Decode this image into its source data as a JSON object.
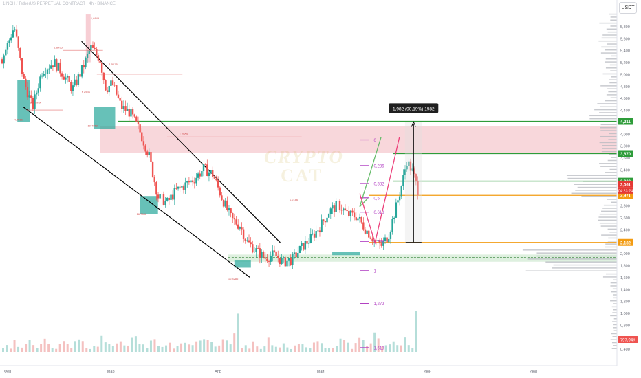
{
  "header": {
    "symbol_line": "1INCH / TetherUS PERPETUAL CONTRACT · 4h · BINANCE",
    "currency_button": "USDT"
  },
  "watermark": {
    "line1": "CRYPTO",
    "line2": "CAT"
  },
  "colors": {
    "background": "#ffffff",
    "candle_up": "#26a69a",
    "candle_down": "#ef5350",
    "zone_red": "#f6c9cf",
    "zone_green": "#c8e6c9",
    "level_green": "#2e9c3a",
    "level_orange": "#f39c12",
    "fib_purple": "#b13fc2",
    "price_red": "#e53935",
    "volume_bar": "#c3c6ce",
    "projection_green": "#66bb6a",
    "projection_red": "#ec407a"
  },
  "chart_data": {
    "type": "candlestick",
    "y_axis": {
      "ticks": [
        "5,800",
        "5,600",
        "5,400",
        "5,200",
        "5,000",
        "4,800",
        "4,600",
        "4,400",
        "4,200",
        "4,000",
        "3,800",
        "3,600",
        "3,400",
        "3,200",
        "3,000",
        "2,800",
        "2,600",
        "2,400",
        "2,200",
        "2,000",
        "1,800",
        "1,600",
        "1,400",
        "1,200",
        "1,000",
        "0,800",
        "0,600",
        "0,400"
      ],
      "tick_values": [
        5.8,
        5.6,
        5.4,
        5.2,
        5.0,
        4.8,
        4.6,
        4.4,
        4.2,
        4.0,
        3.8,
        3.6,
        3.4,
        3.2,
        3.0,
        2.8,
        2.6,
        2.4,
        2.2,
        2.0,
        1.8,
        1.6,
        1.4,
        1.2,
        1.0,
        0.8,
        0.6,
        0.4
      ],
      "range": [
        0.35,
        6.15
      ]
    },
    "x_axis": {
      "ticks": [
        "Фев",
        "Мар",
        "Апр",
        "Май",
        "Июн",
        "Июл"
      ],
      "tick_pos": [
        0.0,
        0.1685,
        0.3444,
        0.5115,
        0.6859,
        0.8592
      ]
    },
    "price_path": [
      [
        0.0,
        5.25
      ],
      [
        0.02,
        5.8
      ],
      [
        0.035,
        4.9
      ],
      [
        0.05,
        4.45
      ],
      [
        0.065,
        5.05
      ],
      [
        0.085,
        5.2
      ],
      [
        0.1,
        5.0
      ],
      [
        0.115,
        4.75
      ],
      [
        0.13,
        5.05
      ],
      [
        0.145,
        5.45
      ],
      [
        0.16,
        5.25
      ],
      [
        0.17,
        4.75
      ],
      [
        0.18,
        4.85
      ],
      [
        0.195,
        4.45
      ],
      [
        0.21,
        4.35
      ],
      [
        0.225,
        4.05
      ],
      [
        0.24,
        3.65
      ],
      [
        0.255,
        2.95
      ],
      [
        0.27,
        2.85
      ],
      [
        0.285,
        3.05
      ],
      [
        0.3,
        3.15
      ],
      [
        0.315,
        3.25
      ],
      [
        0.33,
        3.42
      ],
      [
        0.345,
        3.32
      ],
      [
        0.36,
        2.92
      ],
      [
        0.375,
        2.58
      ],
      [
        0.39,
        2.45
      ],
      [
        0.4,
        2.2
      ],
      [
        0.415,
        2.05
      ],
      [
        0.43,
        1.92
      ],
      [
        0.445,
        1.98
      ],
      [
        0.46,
        1.85
      ],
      [
        0.475,
        1.9
      ],
      [
        0.49,
        2.1
      ],
      [
        0.505,
        2.25
      ],
      [
        0.52,
        2.45
      ],
      [
        0.535,
        2.7
      ],
      [
        0.55,
        2.82
      ],
      [
        0.565,
        2.65
      ],
      [
        0.58,
        2.62
      ],
      [
        0.595,
        2.4
      ],
      [
        0.61,
        2.2
      ],
      [
        0.62,
        2.12
      ],
      [
        0.632,
        2.3
      ],
      [
        0.645,
        2.8
      ],
      [
        0.655,
        3.2
      ],
      [
        0.662,
        3.55
      ],
      [
        0.672,
        3.35
      ],
      [
        0.68,
        3.06
      ]
    ],
    "volume_heights": [
      0.12,
      0.18,
      0.1,
      0.25,
      0.15,
      0.09,
      0.22,
      0.3,
      0.14,
      0.11,
      0.19,
      0.28,
      0.16,
      0.09,
      0.13,
      0.21,
      0.34,
      0.18,
      0.12,
      0.26,
      0.4,
      0.22,
      0.15,
      0.11,
      0.17,
      0.24,
      0.45,
      0.3,
      0.2,
      0.14,
      0.18,
      0.33,
      0.25,
      0.19,
      0.38,
      0.62,
      0.28,
      0.21,
      0.16,
      0.27,
      0.35,
      0.24,
      0.18,
      0.3,
      0.22,
      0.15,
      0.2,
      0.31,
      0.26,
      0.19,
      0.14,
      0.22,
      0.35,
      0.48,
      0.29,
      0.21,
      0.17,
      0.25,
      0.33,
      0.28,
      0.2,
      0.45,
      1.0
    ],
    "price_levels": [
      {
        "label": "4,211",
        "value": 4.211,
        "color": "#2e9c3a"
      },
      {
        "label": "3,670",
        "value": 3.67,
        "color": "#2e9c3a"
      },
      {
        "label": "3,209",
        "value": 3.209,
        "color": "#2e9c3a"
      },
      {
        "label": "3,061",
        "value": 3.061,
        "color": "#e53935"
      },
      {
        "label": "2,971",
        "value": 2.971,
        "color": "#f39c12"
      },
      {
        "label": "2,182",
        "value": 2.182,
        "color": "#f39c12"
      }
    ],
    "countdown": "04:23:24",
    "volume_label": "797,94K",
    "fib_levels": [
      {
        "label": "0",
        "value": 3.9
      },
      {
        "label": "0,236",
        "value": 3.47
      },
      {
        "label": "0,382",
        "value": 3.17
      },
      {
        "label": "0,5",
        "value": 2.93
      },
      {
        "label": "0,618",
        "value": 2.69
      },
      {
        "label": "0,786",
        "value": 2.2
      },
      {
        "label": "1",
        "value": 1.71
      },
      {
        "label": "1,272",
        "value": 1.16
      },
      {
        "label": "1,618",
        "value": 0.42
      }
    ],
    "measure_label": "1,982 (90,19%) 1982",
    "annotations": [
      {
        "text": "1,6849",
        "px": 0.145,
        "value": 5.92
      },
      {
        "text": "1,8495",
        "px": 0.085,
        "value": 5.43
      },
      {
        "text": "1,5175",
        "px": 0.175,
        "value": 5.15
      },
      {
        "text": "1,4995",
        "px": 0.13,
        "value": 4.68
      },
      {
        "text": "4,7566",
        "px": 0.02,
        "value": 4.22
      },
      {
        "text": "183,3226",
        "px": 0.045,
        "value": 4.5
      },
      {
        "text": "10,4952",
        "px": 0.14,
        "value": 4.12
      },
      {
        "text": "1,0559",
        "px": 0.29,
        "value": 3.98
      },
      {
        "text": "16,7586",
        "px": 0.22,
        "value": 2.64
      },
      {
        "text": "1,0186",
        "px": 0.47,
        "value": 2.88
      },
      {
        "text": "10,4286",
        "px": 0.37,
        "value": 1.56
      }
    ]
  }
}
